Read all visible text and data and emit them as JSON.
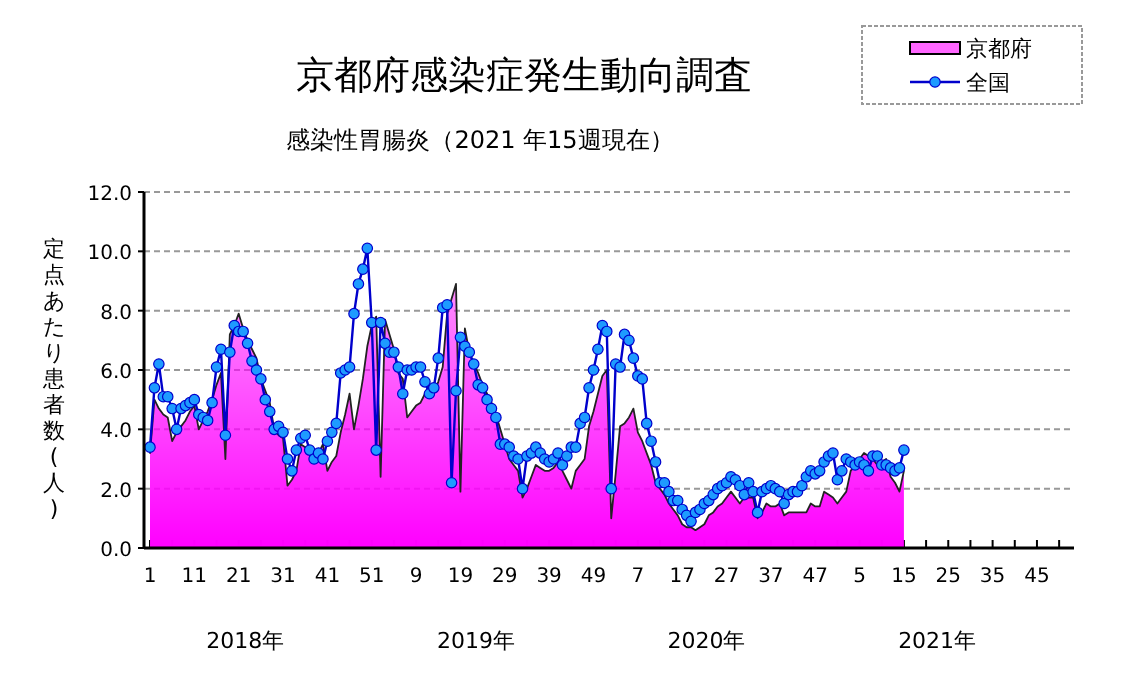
{
  "chart_data": {
    "type": "area",
    "title": "京都府感染症発生動向調査",
    "subtitle": "感染性胃腸炎（2021 年15週現在）",
    "ylabel": "定点あたり患者数(人)",
    "annotations": [
      "2018年",
      "2019年",
      "2020年",
      "2021年"
    ],
    "categories": [
      "1",
      null,
      null,
      null,
      null,
      null,
      null,
      null,
      null,
      null,
      "11",
      null,
      null,
      null,
      null,
      null,
      null,
      null,
      null,
      null,
      "21",
      null,
      null,
      null,
      null,
      null,
      null,
      null,
      null,
      null,
      "31",
      null,
      null,
      null,
      null,
      null,
      null,
      null,
      null,
      null,
      "41",
      null,
      null,
      null,
      null,
      null,
      null,
      null,
      null,
      null,
      "51",
      null,
      null,
      null,
      null,
      null,
      null,
      null,
      null,
      null,
      "9",
      null,
      null,
      null,
      null,
      null,
      null,
      null,
      null,
      null,
      "19",
      null,
      null,
      null,
      null,
      null,
      null,
      null,
      null,
      null,
      "29",
      null,
      null,
      null,
      null,
      null,
      null,
      null,
      null,
      null,
      "39",
      null,
      null,
      null,
      null,
      null,
      null,
      null,
      null,
      null,
      "49",
      null,
      null,
      null,
      null,
      null,
      null,
      null,
      null,
      null,
      "7",
      null,
      null,
      null,
      null,
      null,
      null,
      null,
      null,
      null,
      "17",
      null,
      null,
      null,
      null,
      null,
      null,
      null,
      null,
      null,
      "27",
      null,
      null,
      null,
      null,
      null,
      null,
      null,
      null,
      null,
      "37",
      null,
      null,
      null,
      null,
      null,
      null,
      null,
      null,
      null,
      "47",
      null,
      null,
      null,
      null,
      null,
      null,
      null,
      null,
      null,
      "5",
      null,
      null,
      null,
      null,
      null,
      null,
      null,
      null,
      null,
      "15",
      null,
      null,
      null,
      null,
      null,
      null,
      null,
      null,
      null,
      "25",
      null,
      null,
      null,
      null,
      null,
      null,
      null,
      null,
      null,
      "35",
      null,
      null,
      null,
      null,
      null,
      null,
      null,
      null,
      null,
      "45",
      null,
      null,
      null,
      null,
      null,
      null,
      null
    ],
    "ylim": [
      0,
      12
    ],
    "yticks": [
      {
        "value": 0,
        "label": "0.0"
      },
      {
        "value": 2,
        "label": "2.0"
      },
      {
        "value": 4,
        "label": "4.0"
      },
      {
        "value": 6,
        "label": "6.0"
      },
      {
        "value": 8,
        "label": "8.0"
      },
      {
        "value": 10,
        "label": "10.0"
      },
      {
        "value": 12,
        "label": "12.0"
      }
    ],
    "grid": "y",
    "legend": "top right",
    "series": [
      {
        "name": "京都府",
        "color": "#ff00ff",
        "values": [
          3.2,
          5.0,
          4.7,
          4.5,
          4.4,
          3.6,
          3.9,
          4.1,
          4.3,
          4.6,
          4.8,
          4.0,
          4.3,
          4.6,
          5.0,
          5.5,
          5.9,
          3.0,
          7.2,
          7.5,
          7.9,
          7.4,
          7.0,
          6.7,
          6.4,
          5.7,
          5.3,
          4.9,
          4.0,
          3.8,
          3.7,
          2.1,
          2.3,
          2.6,
          3.5,
          3.4,
          3.4,
          3.0,
          3.2,
          3.5,
          2.6,
          2.9,
          3.1,
          3.9,
          4.5,
          5.2,
          4.0,
          4.8,
          5.7,
          6.8,
          7.5,
          7.8,
          2.4,
          7.7,
          7.2,
          6.7,
          5.9,
          5.7,
          4.4,
          4.6,
          4.8,
          4.9,
          5.2,
          5.5,
          5.2,
          5.6,
          6.1,
          7.9,
          8.4,
          8.9,
          1.9,
          7.4,
          6.6,
          6.2,
          5.9,
          5.5,
          5.2,
          4.9,
          4.5,
          4.0,
          3.5,
          3.0,
          2.8,
          2.6,
          1.7,
          2.0,
          2.4,
          2.8,
          2.7,
          2.6,
          2.6,
          2.7,
          2.9,
          2.6,
          2.3,
          2.0,
          2.6,
          2.8,
          3.0,
          4.1,
          4.6,
          5.2,
          5.8,
          6.0,
          1.0,
          2.5,
          4.1,
          4.2,
          4.4,
          4.7,
          3.9,
          3.6,
          3.2,
          2.8,
          2.2,
          2.0,
          1.8,
          1.5,
          1.3,
          1.1,
          0.8,
          0.7,
          0.7,
          0.6,
          0.7,
          0.8,
          1.1,
          1.2,
          1.4,
          1.5,
          1.7,
          1.9,
          1.7,
          1.5,
          1.7,
          1.7,
          1.7,
          1.0,
          1.2,
          1.5,
          1.4,
          1.4,
          1.5,
          1.1,
          1.2,
          1.2,
          1.2,
          1.2,
          1.2,
          1.5,
          1.4,
          1.4,
          1.9,
          1.8,
          1.7,
          1.5,
          1.7,
          1.9,
          2.6,
          2.8,
          3.0,
          3.2,
          3.1,
          3.0,
          2.8,
          2.9,
          3.0,
          2.4,
          2.2,
          1.9,
          2.6,
          null,
          null,
          null,
          null,
          null,
          null,
          null,
          null,
          null,
          null,
          null,
          null,
          null,
          null,
          null,
          null,
          null,
          null,
          null,
          null,
          null,
          null,
          null,
          null,
          null,
          null,
          null,
          null,
          null,
          null,
          null,
          null,
          null,
          null,
          null,
          null,
          null
        ]
      },
      {
        "name": "全国",
        "type": "line",
        "color": "#0000cc",
        "marker": "circle",
        "values": [
          3.4,
          5.4,
          6.2,
          5.1,
          5.1,
          4.7,
          4.0,
          4.7,
          4.8,
          4.9,
          5.0,
          4.5,
          4.4,
          4.3,
          4.9,
          6.1,
          6.7,
          3.8,
          6.6,
          7.5,
          7.3,
          7.3,
          6.9,
          6.3,
          6.0,
          5.7,
          5.0,
          4.6,
          4.0,
          4.1,
          3.9,
          3.0,
          2.6,
          3.3,
          3.7,
          3.8,
          3.3,
          3.0,
          3.2,
          3.0,
          3.6,
          3.9,
          4.2,
          5.9,
          6.0,
          6.1,
          7.9,
          8.9,
          9.4,
          10.1,
          7.6,
          3.3,
          7.6,
          6.9,
          6.6,
          6.6,
          6.1,
          5.2,
          6.0,
          6.0,
          6.1,
          6.1,
          5.6,
          5.2,
          5.4,
          6.4,
          8.1,
          8.2,
          2.2,
          5.3,
          7.1,
          6.8,
          6.6,
          6.2,
          5.5,
          5.4,
          5.0,
          4.7,
          4.4,
          3.5,
          3.5,
          3.4,
          3.1,
          3.0,
          2.0,
          3.1,
          3.2,
          3.4,
          3.2,
          3.0,
          2.9,
          3.0,
          3.2,
          2.8,
          3.1,
          3.4,
          3.4,
          4.2,
          4.4,
          5.4,
          6.0,
          6.7,
          7.5,
          7.3,
          2.0,
          6.2,
          6.1,
          7.2,
          7.0,
          6.4,
          5.8,
          5.7,
          4.2,
          3.6,
          2.9,
          2.2,
          2.2,
          1.9,
          1.6,
          1.6,
          1.3,
          1.1,
          0.9,
          1.2,
          1.3,
          1.5,
          1.6,
          1.8,
          2.0,
          2.1,
          2.2,
          2.4,
          2.3,
          2.1,
          1.8,
          2.2,
          1.9,
          1.2,
          1.9,
          2.0,
          2.1,
          2.0,
          1.9,
          1.5,
          1.8,
          1.9,
          1.9,
          2.1,
          2.4,
          2.6,
          2.5,
          2.6,
          2.9,
          3.1,
          3.2,
          2.3,
          2.6,
          3.0,
          2.9,
          2.8,
          2.9,
          2.8,
          2.6,
          3.1,
          3.1,
          2.8,
          2.8,
          2.7,
          2.6,
          2.7,
          3.3,
          null,
          null,
          null,
          null,
          null,
          null,
          null,
          null,
          null,
          null,
          null,
          null,
          null,
          null,
          null,
          null,
          null,
          null,
          null,
          null,
          null,
          null,
          null,
          null,
          null,
          null,
          null,
          null,
          null,
          null,
          null,
          null,
          null,
          null,
          null,
          null,
          null
        ]
      }
    ]
  }
}
